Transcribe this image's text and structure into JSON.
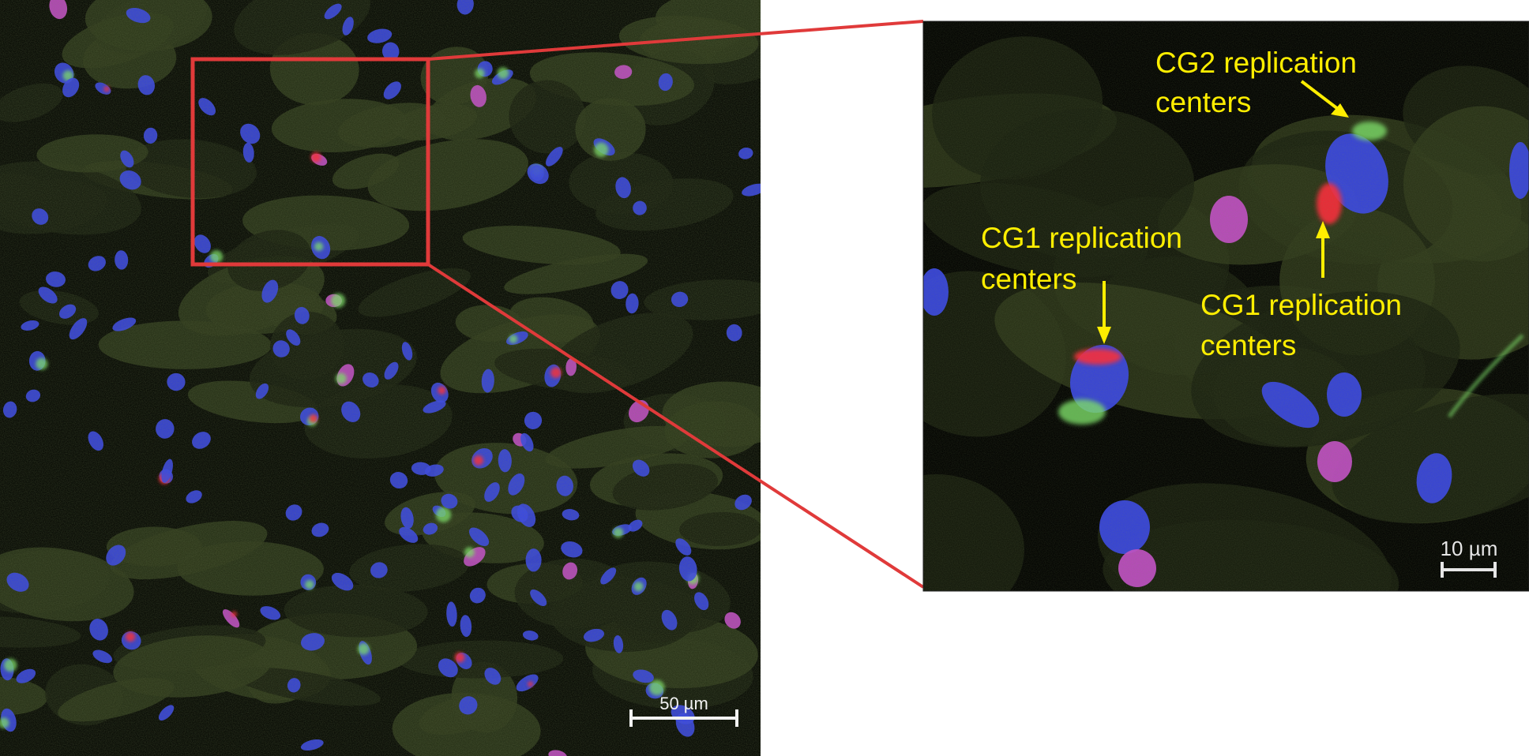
{
  "colors": {
    "background": "#ffffff",
    "tissue": "#2f3a1c",
    "tissue_dark": "#1a2010",
    "nucleus_blue": "#3b48e6",
    "nucleus_magenta": "#c34fc8",
    "replication_green": "#7ee36a",
    "replication_red": "#ff2a3b",
    "inset_box": "#e03a3a",
    "annotation_text": "#ffee00",
    "scale_bar": "#f2f2f2"
  },
  "overview": {
    "scale_label": "50 µm"
  },
  "inset": {
    "scale_label": "10 µm",
    "annotations": [
      {
        "id": "cg2",
        "lines": [
          "CG2 replication",
          "centers"
        ]
      },
      {
        "id": "cg1-left",
        "lines": [
          "CG1 replication",
          "centers"
        ]
      },
      {
        "id": "cg1-right",
        "lines": [
          "CG1 replication",
          "centers"
        ]
      }
    ]
  }
}
